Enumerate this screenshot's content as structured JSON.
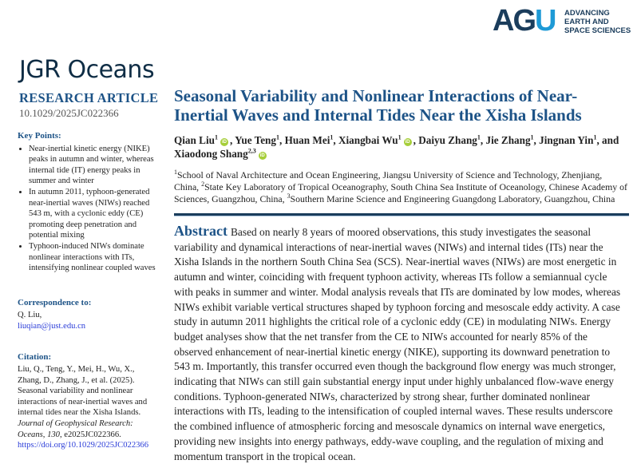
{
  "publisher_logo": {
    "mark_dark": "AG",
    "mark_light": "U",
    "tagline": [
      "ADVANCING",
      "EARTH AND",
      "SPACE SCIENCES"
    ]
  },
  "journal": "JGR Oceans",
  "article_type": "RESEARCH ARTICLE",
  "doi": "10.1029/2025JC022366",
  "key_points": {
    "heading": "Key Points:",
    "items": [
      "Near-inertial kinetic energy (NIKE) peaks in autumn and winter, whereas internal tide (IT) energy peaks in summer and winter",
      "In autumn 2011, typhoon-generated near-inertial waves (NIWs) reached 543 m, with a cyclonic eddy (CE) promoting deep penetration and potential mixing",
      "Typhoon-induced NIWs dominate nonlinear interactions with ITs, intensifying nonlinear coupled waves"
    ]
  },
  "correspondence": {
    "heading": "Correspondence to:",
    "name": "Q. Liu,",
    "email": "liuqian@just.edu.cn"
  },
  "citation": {
    "heading": "Citation:",
    "text": "Liu, Q., Teng, Y., Mei, H., Wu, X., Zhang, D., Zhang, J., et al. (2025). Seasonal variability and nonlinear interactions of near-inertial waves and internal tides near the Xisha Islands.",
    "journal": "Journal of Geophysical Research: Oceans",
    "comma1": ", ",
    "volume": "130",
    "rest": ", e2025JC022366.",
    "url": "https://doi.org/10.1029/2025JC022366"
  },
  "title": "Seasonal Variability and Nonlinear Interactions of Near-Inertial Waves and Internal Tides Near the Xisha Islands",
  "authors": [
    {
      "name": "Qian Liu",
      "aff": "1",
      "orcid": true,
      "sep": ", "
    },
    {
      "name": "Yue Teng",
      "aff": "1",
      "orcid": false,
      "sep": ", "
    },
    {
      "name": "Huan Mei",
      "aff": "1",
      "orcid": false,
      "sep": ", "
    },
    {
      "name": "Xiangbai Wu",
      "aff": "1",
      "orcid": true,
      "sep": ", "
    },
    {
      "name": "Daiyu Zhang",
      "aff": "1",
      "orcid": false,
      "sep": ", "
    },
    {
      "name": "Jie Zhang",
      "aff": "1",
      "orcid": false,
      "sep": ", "
    },
    {
      "name": "Jingnan Yin",
      "aff": "1",
      "orcid": false,
      "sep": ", and "
    },
    {
      "name": "Xiaodong Shang",
      "aff": "2,3",
      "orcid": true,
      "sep": ""
    }
  ],
  "orcid_label": "iD",
  "affiliations": [
    {
      "n": "1",
      "text": "School of Naval Architecture and Ocean Engineering, Jiangsu University of Science and Technology, Zhenjiang, China, "
    },
    {
      "n": "2",
      "text": "State Key Laboratory of Tropical Oceanography, South China Sea Institute of Oceanology, Chinese Academy of Sciences, Guangzhou, China, "
    },
    {
      "n": "3",
      "text": "Southern Marine Science and Engineering Guangdong Laboratory, Guangzhou, China"
    }
  ],
  "abstract": {
    "heading": "Abstract",
    "text": "Based on nearly 8 years of moored observations, this study investigates the seasonal variability and dynamical interactions of near-inertial waves (NIWs) and internal tides (ITs) near the Xisha Islands in the northern South China Sea (SCS). Near-inertial waves (NIWs) are most energetic in autumn and winter, coinciding with frequent typhoon activity, whereas ITs follow a semiannual cycle with peaks in summer and winter. Modal analysis reveals that ITs are dominated by low modes, whereas NIWs exhibit variable vertical structures shaped by typhoon forcing and mesoscale eddy activity. A case study in autumn 2011 highlights the critical role of a cyclonic eddy (CE) in modulating NIWs. Energy budget analyses show that the net transfer from the CE to NIWs accounted for nearly 85% of the observed enhancement of near-inertial kinetic energy (NIKE), supporting its downward penetration to 543 m. Importantly, this transfer occurred even though the background flow energy was much stronger, indicating that NIWs can still gain substantial energy input under highly unbalanced flow-wave energy conditions. Typhoon-generated NIWs, characterized by strong shear, further dominated nonlinear interactions with ITs, leading to the intensification of coupled internal waves. These results underscore the combined influence of atmospheric forcing and mesoscale dynamics on internal wave energetics, providing new insights into energy pathways, eddy-wave coupling, and the regulation of mixing and momentum transport in the tropical ocean."
  },
  "colors": {
    "heading_blue": "#1d5387",
    "navy": "#1b3d5c",
    "agu_light": "#1e9ad6",
    "link": "#2a3cd8",
    "orcid": "#a6ce39"
  }
}
